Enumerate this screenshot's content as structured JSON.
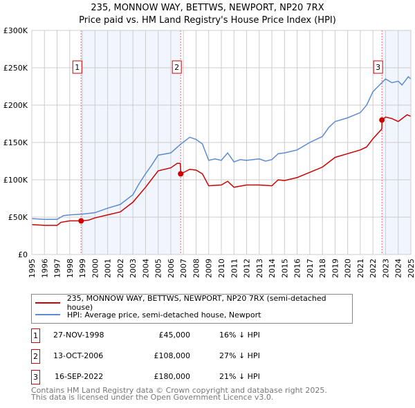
{
  "title": "235, MONNOW WAY, BETTWS, NEWPORT, NP20 7RX",
  "subtitle": "Price paid vs. HM Land Registry's House Price Index (HPI)",
  "chart_data": {
    "type": "line",
    "xlim": [
      1995,
      2025
    ],
    "ylim": [
      0,
      300000
    ],
    "yticks": [
      {
        "v": 0,
        "label": "£0"
      },
      {
        "v": 50000,
        "label": "£50K"
      },
      {
        "v": 100000,
        "label": "£100K"
      },
      {
        "v": 150000,
        "label": "£150K"
      },
      {
        "v": 200000,
        "label": "£200K"
      },
      {
        "v": 250000,
        "label": "£250K"
      },
      {
        "v": 300000,
        "label": "£300K"
      }
    ],
    "xticks": [
      "1995",
      "1996",
      "1997",
      "1998",
      "1999",
      "2000",
      "2001",
      "2002",
      "2003",
      "2004",
      "2005",
      "2006",
      "2007",
      "2008",
      "2009",
      "2010",
      "2011",
      "2012",
      "2013",
      "2014",
      "2015",
      "2016",
      "2017",
      "2018",
      "2019",
      "2020",
      "2021",
      "2022",
      "2023",
      "2024",
      "2025"
    ],
    "grid": true,
    "series": [
      {
        "name": "235, MONNOW WAY, BETTWS, NEWPORT, NP20 7RX (semi-detached house)",
        "color": "#cc0000",
        "x": [
          1995,
          1996,
          1997,
          1997.3,
          1998,
          1998.9,
          1999.5,
          2000,
          2001,
          2002,
          2003,
          2004,
          2005,
          2006,
          2006.5,
          2006.75,
          2006.8,
          2007.5,
          2008,
          2008.5,
          2009,
          2010,
          2010.5,
          2011,
          2012,
          2013,
          2014,
          2014.5,
          2015,
          2016,
          2017,
          2018,
          2019,
          2020,
          2021,
          2021.5,
          2022,
          2022.7,
          2022.72,
          2023,
          2023.5,
          2024,
          2024.7,
          2025
        ],
        "y": [
          40000,
          39000,
          39000,
          43000,
          45000,
          45000,
          46000,
          49000,
          53000,
          57000,
          70000,
          90000,
          112000,
          116000,
          122000,
          122000,
          108000,
          114000,
          113000,
          108000,
          92000,
          93000,
          98000,
          90000,
          93000,
          93000,
          92000,
          100000,
          99000,
          103000,
          110000,
          117000,
          130000,
          135000,
          140000,
          144000,
          155000,
          168000,
          180000,
          184000,
          182000,
          178000,
          187000,
          185000
        ]
      },
      {
        "name": "HPI: Average price, semi-detached house, Newport",
        "color": "#5b8bd0",
        "x": [
          1995,
          1996,
          1997,
          1997.5,
          1998,
          1999,
          2000,
          2001,
          2002,
          2003,
          2003.5,
          2004,
          2004.5,
          2005,
          2006,
          2006.8,
          2007.5,
          2008,
          2008.5,
          2009,
          2009.5,
          2010,
          2010.5,
          2011,
          2011.5,
          2012,
          2013,
          2013.5,
          2014,
          2014.5,
          2015,
          2016,
          2017,
          2018,
          2018.5,
          2019,
          2020,
          2021,
          2021.5,
          2022,
          2022.7,
          2023,
          2023.5,
          2024,
          2024.3,
          2024.8,
          2025
        ],
        "y": [
          48000,
          47000,
          47000,
          52000,
          53000,
          54000,
          56000,
          62000,
          67000,
          80000,
          95000,
          108000,
          120000,
          133000,
          136000,
          148000,
          157000,
          154000,
          148000,
          126000,
          128000,
          126000,
          136000,
          124000,
          127000,
          126000,
          128000,
          125000,
          127000,
          135000,
          136000,
          140000,
          150000,
          158000,
          170000,
          178000,
          183000,
          190000,
          200000,
          218000,
          230000,
          235000,
          230000,
          232000,
          227000,
          238000,
          235000
        ]
      }
    ],
    "sales": [
      {
        "id": "1",
        "x": 1998.9,
        "y": 45000,
        "date": "27-NOV-1998",
        "price": "£45,000",
        "hpi": "16% ↓ HPI"
      },
      {
        "id": "2",
        "x": 2006.78,
        "y": 108000,
        "date": "13-OCT-2006",
        "price": "£108,000",
        "hpi": "27% ↓ HPI"
      },
      {
        "id": "3",
        "x": 2022.71,
        "y": 180000,
        "date": "16-SEP-2022",
        "price": "£180,000",
        "hpi": "21% ↓ HPI"
      }
    ],
    "shaded": [
      [
        1998.9,
        2006.78
      ],
      [
        2022.71,
        2025
      ]
    ]
  },
  "footer1": "Contains HM Land Registry data © Crown copyright and database right 2025.",
  "footer2": "This data is licensed under the Open Government Licence v3.0."
}
